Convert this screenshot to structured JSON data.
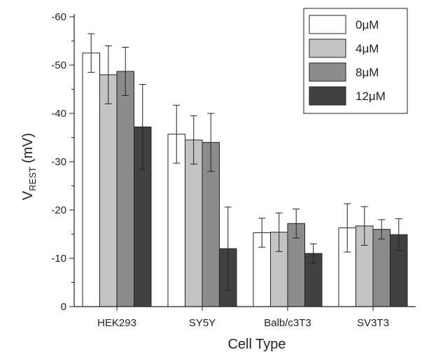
{
  "chart_data": {
    "type": "bar",
    "xlabel": "Cell Type",
    "ylabel_main": "V",
    "ylabel_sub": "REST",
    "ylabel_unit": "(mV)",
    "ylim": [
      0,
      -60
    ],
    "yticks": [
      0,
      -10,
      -20,
      -30,
      -40,
      -50,
      -60
    ],
    "ytick_labels": [
      "0",
      "-10",
      "-20",
      "-30",
      "-40",
      "-50",
      "-60"
    ],
    "categories": [
      "HEK293",
      "SY5Y",
      "Balb/c3T3",
      "SV3T3"
    ],
    "series": [
      {
        "name": "0μM",
        "color": "#ffffff",
        "values": [
          -52.5,
          -35.7,
          -15.3,
          -16.3
        ],
        "errors": [
          4.0,
          6.0,
          3.0,
          5.0
        ]
      },
      {
        "name": "4μM",
        "color": "#c4c4c4",
        "values": [
          -48.0,
          -34.5,
          -15.4,
          -16.7
        ],
        "errors": [
          6.0,
          5.0,
          4.0,
          4.0
        ]
      },
      {
        "name": "8μM",
        "color": "#8c8c8c",
        "values": [
          -48.7,
          -34.0,
          -17.2,
          -16.0
        ],
        "errors": [
          5.0,
          6.0,
          3.0,
          2.0
        ]
      },
      {
        "name": "12μM",
        "color": "#414141",
        "values": [
          -37.2,
          -12.0,
          -11.0,
          -14.9
        ],
        "errors": [
          8.8,
          8.6,
          2.0,
          3.3
        ]
      }
    ],
    "legend_position": "top-right",
    "grid": false
  }
}
